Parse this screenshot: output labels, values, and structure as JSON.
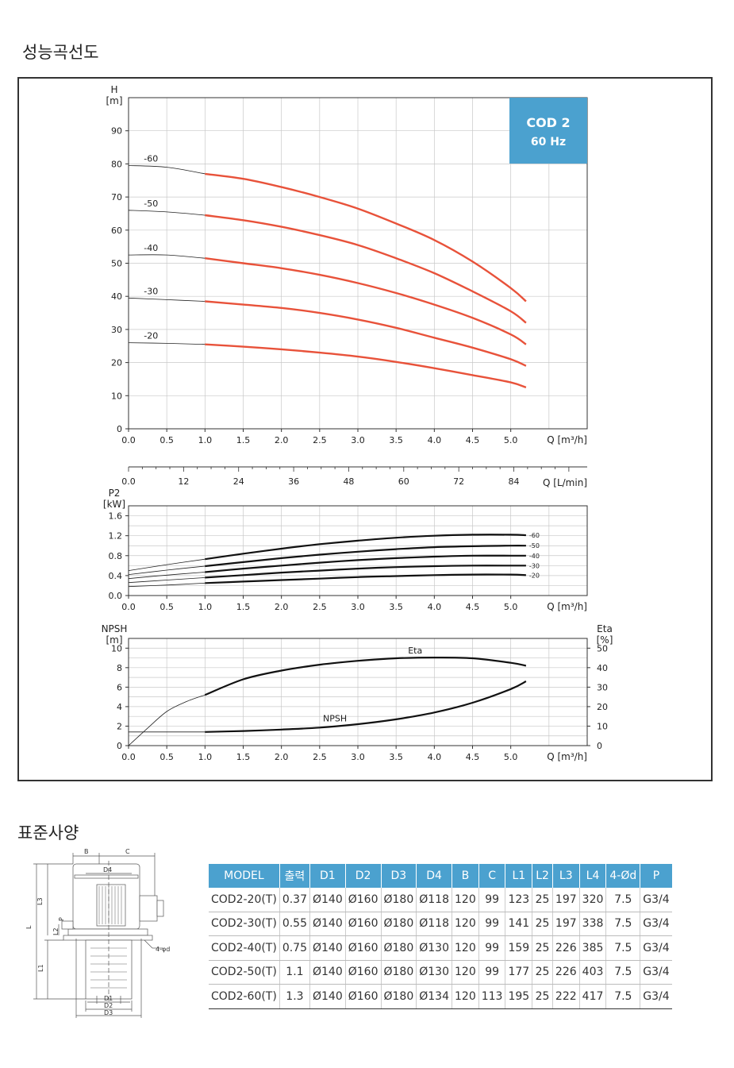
{
  "headings": {
    "performance": "성능곡선도",
    "spec": "표준사양"
  },
  "colors": {
    "head_curve": "#e8523a",
    "thin_curve": "#222222",
    "badge_bg": "#4ba1cf",
    "table_header": "#4ba1cf"
  },
  "badge": {
    "line1": "COD 2",
    "line2": "60 Hz"
  },
  "chart_data": [
    {
      "type": "line",
      "ylabel": "H",
      "yunit": "[m]",
      "xlabel": "Q [m³/h]",
      "xlim": [
        0,
        6.0
      ],
      "ylim": [
        0,
        100
      ],
      "xticks": [
        "0.0",
        "0.5",
        "1.0",
        "1.5",
        "2.0",
        "2.5",
        "3.0",
        "3.5",
        "4.0",
        "4.5",
        "5.0"
      ],
      "yticks": [
        "0",
        "10",
        "20",
        "30",
        "40",
        "50",
        "60",
        "70",
        "80",
        "90"
      ],
      "grid": true,
      "series": [
        {
          "name": "-60",
          "x": [
            0,
            0.5,
            1.0,
            1.5,
            2.0,
            2.5,
            3.0,
            3.5,
            4.0,
            4.5,
            5.0,
            5.2
          ],
          "y": [
            79.5,
            79,
            77,
            75.5,
            73,
            70,
            66.5,
            62,
            57,
            50.5,
            42.5,
            38.5
          ]
        },
        {
          "name": "-50",
          "x": [
            0,
            0.5,
            1.0,
            1.5,
            2.0,
            2.5,
            3.0,
            3.5,
            4.0,
            4.5,
            5.0,
            5.2
          ],
          "y": [
            66,
            65.5,
            64.5,
            63,
            61,
            58.5,
            55.5,
            51.5,
            47,
            41.5,
            35.5,
            32
          ]
        },
        {
          "name": "-40",
          "x": [
            0,
            0.5,
            1.0,
            1.5,
            2.0,
            2.5,
            3.0,
            3.5,
            4.0,
            4.5,
            5.0,
            5.2
          ],
          "y": [
            52.5,
            52.5,
            51.5,
            50,
            48.5,
            46.5,
            44,
            41,
            37.5,
            33.5,
            28.5,
            25.5
          ]
        },
        {
          "name": "-30",
          "x": [
            0,
            0.5,
            1.0,
            1.5,
            2.0,
            2.5,
            3.0,
            3.5,
            4.0,
            4.5,
            5.0,
            5.2
          ],
          "y": [
            39.5,
            39,
            38.5,
            37.5,
            36.5,
            35,
            33,
            30.5,
            27.5,
            24.5,
            21,
            19
          ]
        },
        {
          "name": "-20",
          "x": [
            0,
            0.5,
            1.0,
            1.5,
            2.0,
            2.5,
            3.0,
            3.5,
            4.0,
            4.5,
            5.0,
            5.2
          ],
          "y": [
            26,
            25.8,
            25.5,
            24.8,
            24,
            23,
            21.8,
            20.2,
            18.3,
            16.2,
            14,
            12.5
          ]
        }
      ],
      "secondary_axis": {
        "label": "Q [L/min]",
        "ticks": [
          "0.0",
          "12",
          "24",
          "36",
          "48",
          "60",
          "72",
          "84"
        ]
      }
    },
    {
      "type": "line",
      "ylabel": "P2",
      "yunit": "[kW]",
      "xlabel": "Q [m³/h]",
      "xlim": [
        0,
        6.0
      ],
      "ylim": [
        0,
        1.8
      ],
      "xticks": [
        "0.0",
        "0.5",
        "1.0",
        "1.5",
        "2.0",
        "2.5",
        "3.0",
        "3.5",
        "4.0",
        "4.5",
        "5.0"
      ],
      "yticks": [
        "0.0",
        "0.4",
        "0.8",
        "1.2",
        "1.6"
      ],
      "grid": true,
      "series": [
        {
          "name": "-60",
          "x": [
            0,
            0.5,
            1.0,
            1.5,
            2.0,
            2.5,
            3.0,
            3.5,
            4.0,
            4.5,
            5.0,
            5.2
          ],
          "y": [
            0.5,
            0.62,
            0.73,
            0.84,
            0.94,
            1.03,
            1.1,
            1.16,
            1.2,
            1.22,
            1.22,
            1.21
          ]
        },
        {
          "name": "-50",
          "x": [
            0,
            0.5,
            1.0,
            1.5,
            2.0,
            2.5,
            3.0,
            3.5,
            4.0,
            4.5,
            5.0,
            5.2
          ],
          "y": [
            0.42,
            0.51,
            0.59,
            0.67,
            0.75,
            0.82,
            0.88,
            0.93,
            0.97,
            0.99,
            1.0,
            1.0
          ]
        },
        {
          "name": "-40",
          "x": [
            0,
            0.5,
            1.0,
            1.5,
            2.0,
            2.5,
            3.0,
            3.5,
            4.0,
            4.5,
            5.0,
            5.2
          ],
          "y": [
            0.34,
            0.41,
            0.47,
            0.54,
            0.6,
            0.66,
            0.71,
            0.75,
            0.78,
            0.8,
            0.8,
            0.8
          ]
        },
        {
          "name": "-30",
          "x": [
            0,
            0.5,
            1.0,
            1.5,
            2.0,
            2.5,
            3.0,
            3.5,
            4.0,
            4.5,
            5.0,
            5.2
          ],
          "y": [
            0.26,
            0.31,
            0.36,
            0.41,
            0.46,
            0.5,
            0.54,
            0.57,
            0.59,
            0.6,
            0.6,
            0.6
          ]
        },
        {
          "name": "-20",
          "x": [
            0,
            0.5,
            1.0,
            1.5,
            2.0,
            2.5,
            3.0,
            3.5,
            4.0,
            4.5,
            5.0,
            5.2
          ],
          "y": [
            0.18,
            0.21,
            0.25,
            0.28,
            0.31,
            0.34,
            0.37,
            0.39,
            0.41,
            0.42,
            0.42,
            0.41
          ]
        }
      ]
    },
    {
      "type": "line",
      "ylabel": "NPSH",
      "yunit": "[m]",
      "y2label": "Eta",
      "y2unit": "[%]",
      "xlabel": "Q [m³/h]",
      "xlim": [
        0,
        6.0
      ],
      "ylim": [
        0,
        11
      ],
      "y2lim": [
        0,
        55
      ],
      "xticks": [
        "0.0",
        "0.5",
        "1.0",
        "1.5",
        "2.0",
        "2.5",
        "3.0",
        "3.5",
        "4.0",
        "4.5",
        "5.0"
      ],
      "yticks": [
        "0",
        "2",
        "4",
        "6",
        "8",
        "10"
      ],
      "y2ticks": [
        "0",
        "10",
        "20",
        "30",
        "40",
        "50"
      ],
      "grid": true,
      "series": [
        {
          "name": "Eta",
          "axis": "right",
          "x": [
            0,
            0.25,
            0.5,
            0.75,
            1.0,
            1.5,
            2.0,
            2.5,
            3.0,
            3.5,
            4.0,
            4.5,
            5.0,
            5.2
          ],
          "y": [
            0,
            9,
            17.5,
            22.5,
            26,
            34,
            38.5,
            41.5,
            43.5,
            44.8,
            45.2,
            44.8,
            42.5,
            41
          ]
        },
        {
          "name": "NPSH",
          "axis": "left",
          "x": [
            0,
            1.0,
            1.5,
            2.0,
            2.5,
            3.0,
            3.5,
            4.0,
            4.5,
            5.0,
            5.2
          ],
          "y": [
            1.4,
            1.4,
            1.5,
            1.65,
            1.85,
            2.2,
            2.7,
            3.4,
            4.4,
            5.8,
            6.6
          ]
        }
      ]
    }
  ],
  "pump_labels": {
    "b": "B",
    "c": "C",
    "d4": "D4",
    "l3": "L3",
    "p": "P",
    "l2": "L2",
    "l": "L",
    "l1": "L1",
    "bolts": "4-φd",
    "d1": "D1",
    "d2": "D2",
    "d3": "D3"
  },
  "spec_table": {
    "headers": [
      "MODEL",
      "출력",
      "D1",
      "D2",
      "D3",
      "D4",
      "B",
      "C",
      "L1",
      "L2",
      "L3",
      "L4",
      "4-Ød",
      "P"
    ],
    "rows": [
      [
        "COD2-20(T)",
        "0.37",
        "Ø140",
        "Ø160",
        "Ø180",
        "Ø118",
        "120",
        "99",
        "123",
        "25",
        "197",
        "320",
        "7.5",
        "G3/4"
      ],
      [
        "COD2-30(T)",
        "0.55",
        "Ø140",
        "Ø160",
        "Ø180",
        "Ø118",
        "120",
        "99",
        "141",
        "25",
        "197",
        "338",
        "7.5",
        "G3/4"
      ],
      [
        "COD2-40(T)",
        "0.75",
        "Ø140",
        "Ø160",
        "Ø180",
        "Ø130",
        "120",
        "99",
        "159",
        "25",
        "226",
        "385",
        "7.5",
        "G3/4"
      ],
      [
        "COD2-50(T)",
        "1.1",
        "Ø140",
        "Ø160",
        "Ø180",
        "Ø130",
        "120",
        "99",
        "177",
        "25",
        "226",
        "403",
        "7.5",
        "G3/4"
      ],
      [
        "COD2-60(T)",
        "1.3",
        "Ø140",
        "Ø160",
        "Ø180",
        "Ø134",
        "120",
        "113",
        "195",
        "25",
        "222",
        "417",
        "7.5",
        "G3/4"
      ]
    ]
  }
}
